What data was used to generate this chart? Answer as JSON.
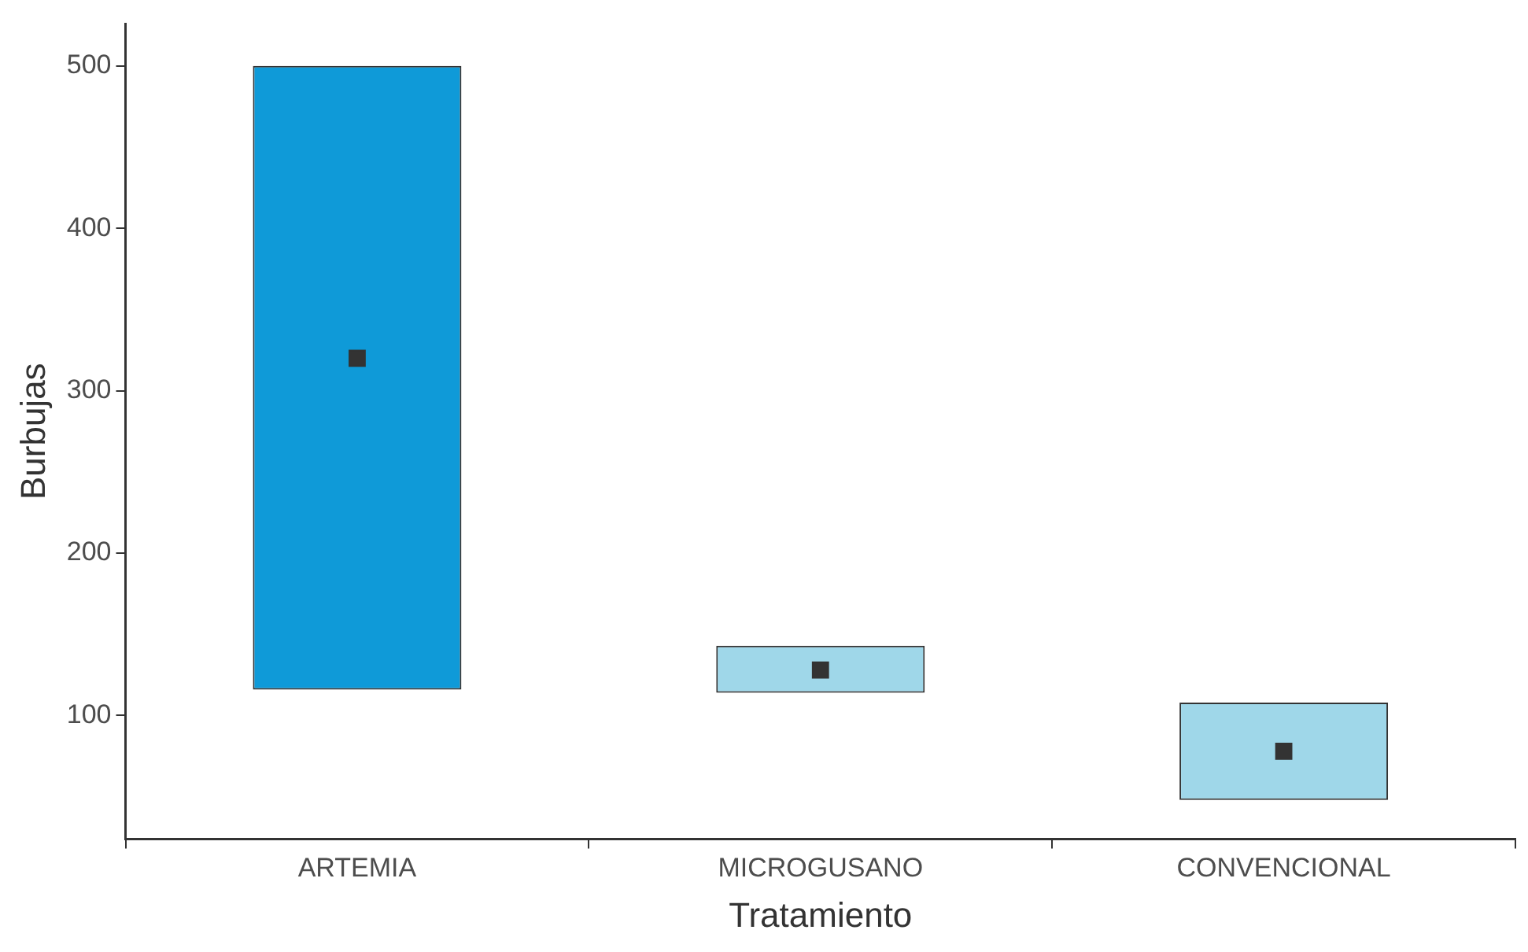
{
  "chart_data": {
    "type": "bar",
    "xlabel": "Tratamiento",
    "ylabel": "Burbujas",
    "categories": [
      "ARTEMIA",
      "MICROGUSANO",
      "CONVENCIONAL"
    ],
    "series": [
      {
        "base": [
          116,
          114,
          48
        ],
        "values": [
          384,
          29,
          60
        ],
        "colors": [
          "#0f9ad8",
          "#9fd7e9",
          "#9fd7e9"
        ]
      },
      {
        "type": "scatter",
        "x": [
          "ARTEMIA",
          "MICROGUSANO",
          "CONVENCIONAL"
        ],
        "values": [
          320,
          128,
          78
        ],
        "color": "#333333"
      }
    ],
    "marker": "square",
    "ylim": [
      24,
      526
    ],
    "yticks": [
      100,
      200,
      300,
      400,
      500
    ],
    "grid": false,
    "legend": false
  }
}
